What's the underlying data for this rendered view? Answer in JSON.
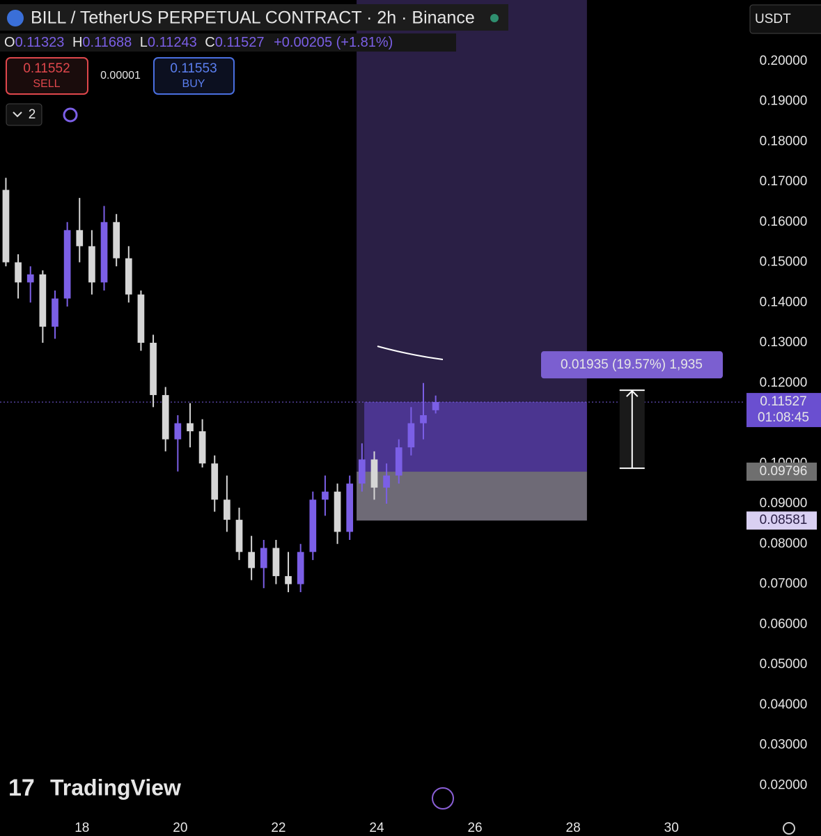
{
  "chart_data": {
    "type": "candlestick",
    "title": "BILL / TetherUS PERPETUAL CONTRACT · 2h · Binance",
    "x": [
      16.45,
      16.7,
      16.95,
      17.2,
      17.45,
      17.7,
      17.95,
      18.2,
      18.45,
      18.7,
      18.95,
      19.2,
      19.45,
      19.7,
      19.95,
      20.2,
      20.45,
      20.7,
      20.95,
      21.2,
      21.45,
      21.7,
      21.95,
      22.2,
      22.45,
      22.7,
      22.95,
      23.2,
      23.45,
      23.7,
      23.95,
      24.2,
      24.45,
      24.7,
      24.95,
      25.2
    ],
    "open": [
      0.168,
      0.15,
      0.145,
      0.147,
      0.134,
      0.141,
      0.158,
      0.154,
      0.145,
      0.16,
      0.151,
      0.142,
      0.13,
      0.117,
      0.106,
      0.11,
      0.108,
      0.1,
      0.091,
      0.086,
      0.078,
      0.074,
      0.079,
      0.072,
      0.07,
      0.078,
      0.091,
      0.093,
      0.083,
      0.095,
      0.101,
      0.094,
      0.097,
      0.104,
      0.11,
      0.11323
    ],
    "high": [
      0.171,
      0.152,
      0.149,
      0.148,
      0.143,
      0.16,
      0.166,
      0.158,
      0.164,
      0.162,
      0.154,
      0.143,
      0.132,
      0.119,
      0.112,
      0.115,
      0.111,
      0.102,
      0.097,
      0.089,
      0.082,
      0.081,
      0.081,
      0.078,
      0.08,
      0.093,
      0.097,
      0.095,
      0.097,
      0.105,
      0.103,
      0.1,
      0.106,
      0.114,
      0.12,
      0.11688
    ],
    "low": [
      0.149,
      0.141,
      0.14,
      0.13,
      0.131,
      0.139,
      0.15,
      0.142,
      0.143,
      0.149,
      0.14,
      0.128,
      0.114,
      0.103,
      0.098,
      0.104,
      0.099,
      0.088,
      0.083,
      0.076,
      0.071,
      0.069,
      0.07,
      0.068,
      0.068,
      0.076,
      0.087,
      0.08,
      0.081,
      0.093,
      0.091,
      0.09,
      0.095,
      0.102,
      0.106,
      0.11243
    ],
    "close": [
      0.15,
      0.145,
      0.147,
      0.134,
      0.141,
      0.158,
      0.154,
      0.145,
      0.16,
      0.151,
      0.142,
      0.13,
      0.117,
      0.106,
      0.11,
      0.108,
      0.1,
      0.091,
      0.086,
      0.078,
      0.074,
      0.079,
      0.072,
      0.07,
      0.078,
      0.091,
      0.093,
      0.083,
      0.095,
      0.101,
      0.094,
      0.097,
      0.104,
      0.11,
      0.112,
      0.11527
    ],
    "up_color": "#7b5fe6",
    "down_color": "#d6d6d6",
    "xlim": [
      16.33,
      31.5
    ],
    "xticks": [
      18,
      20,
      22,
      24,
      26,
      28,
      30
    ],
    "ylim": [
      0.0074,
      0.2152
    ],
    "yticks": [
      {
        "value": 0.2,
        "label": "0.20000"
      },
      {
        "value": 0.19,
        "label": "0.19000"
      },
      {
        "value": 0.18,
        "label": "0.18000"
      },
      {
        "value": 0.17,
        "label": "0.17000"
      },
      {
        "value": 0.16,
        "label": "0.16000"
      },
      {
        "value": 0.15,
        "label": "0.15000"
      },
      {
        "value": 0.14,
        "label": "0.14000"
      },
      {
        "value": 0.13,
        "label": "0.13000"
      },
      {
        "value": 0.12,
        "label": "0.12000"
      },
      {
        "value": 0.11,
        "label": "0.11000"
      },
      {
        "value": 0.1,
        "label": "0.10000"
      },
      {
        "value": 0.09,
        "label": "0.09000"
      },
      {
        "value": 0.08,
        "label": "0.08000"
      },
      {
        "value": 0.07,
        "label": "0.07000"
      },
      {
        "value": 0.06,
        "label": "0.06000"
      },
      {
        "value": 0.05,
        "label": "0.05000"
      },
      {
        "value": 0.04,
        "label": "0.04000"
      },
      {
        "value": 0.03,
        "label": "0.03000"
      },
      {
        "value": 0.02,
        "label": "0.02000"
      }
    ],
    "last_price": 0.11527,
    "countdown": "01:08:45",
    "position": {
      "entry": 0.09796,
      "stop": 0.08581,
      "x_start": 23.59,
      "x_end": 28.28
    },
    "measure": {
      "label": "0.01935 (19.57%) 1,935",
      "from": 0.0988,
      "to": 0.1182,
      "x": 29.2
    }
  },
  "legend": {
    "o": "O",
    "open": "0.11323",
    "h": "H",
    "high": "0.11688",
    "l": "L",
    "low": "0.11243",
    "c": "C",
    "close": "0.11527",
    "change": "+0.00205 (+1.81%)"
  },
  "toolbar": {
    "sell_price": "0.11552",
    "sell": "SELL",
    "spread": "0.00001",
    "buy_price": "0.11553",
    "buy": "BUY",
    "layers": "2",
    "currency": "USDT"
  },
  "brand": "TradingView"
}
